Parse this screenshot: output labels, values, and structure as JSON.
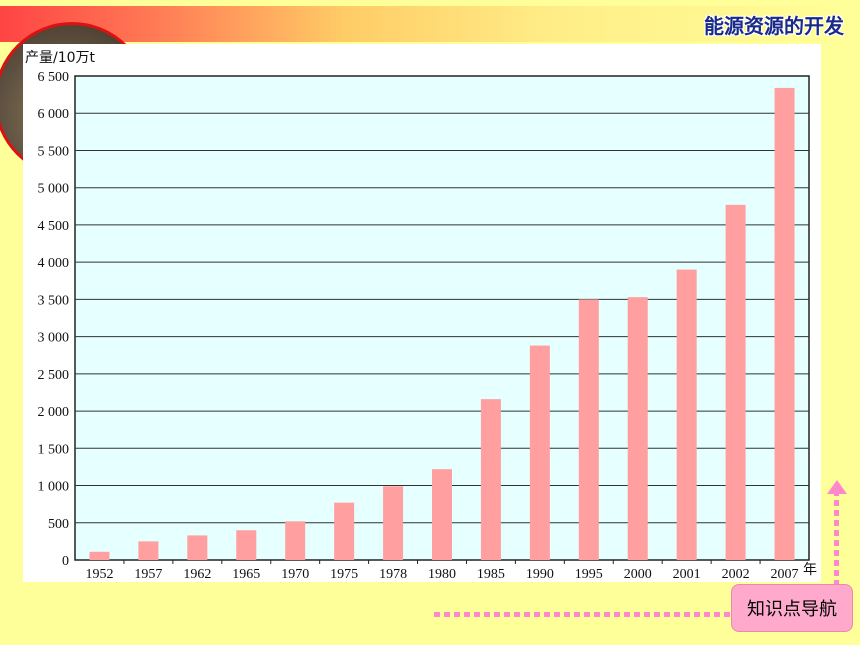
{
  "header": {
    "title": "能源资源的开发"
  },
  "nav": {
    "label": "知识点导航"
  },
  "colors": {
    "plot_bg": "#e6ffff",
    "bar": "#ff9f9f",
    "header_text": "#1a2a8a",
    "nav_bg": "#ffaacc"
  },
  "chart_data": {
    "type": "bar",
    "title": "",
    "ylabel": "产量/10万t",
    "xlabel": "年",
    "ylim": [
      0,
      6500
    ],
    "yticks": [
      "0",
      "500",
      "1 000",
      "1 500",
      "2 000",
      "2 500",
      "3 000",
      "3 500",
      "4 000",
      "4 500",
      "5 000",
      "5 500",
      "6 000",
      "6 500"
    ],
    "ytick_values": [
      0,
      500,
      1000,
      1500,
      2000,
      2500,
      3000,
      3500,
      4000,
      4500,
      5000,
      5500,
      6000,
      6500
    ],
    "categories": [
      "1952",
      "1957",
      "1962",
      "1965",
      "1970",
      "1975",
      "1978",
      "1980",
      "1985",
      "1990",
      "1995",
      "2000",
      "2001",
      "2002",
      "2007"
    ],
    "values": [
      110,
      250,
      330,
      400,
      520,
      770,
      990,
      1220,
      2160,
      2880,
      3500,
      3530,
      3900,
      4770,
      6340
    ],
    "grid": true
  }
}
